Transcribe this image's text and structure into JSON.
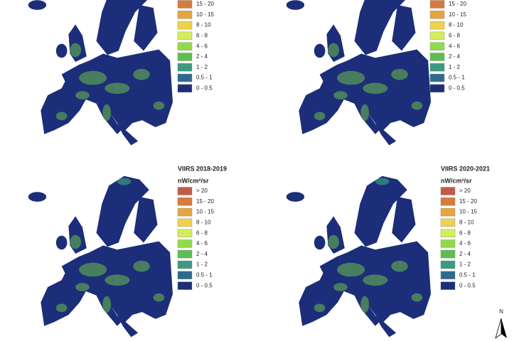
{
  "panels": [
    {
      "legend": [
        {
          "label": "15 - 20",
          "color": "#d77a3c"
        },
        {
          "label": "10 - 15",
          "color": "#e6a53e"
        },
        {
          "label": "8 - 10",
          "color": "#efd24b"
        },
        {
          "label": "6 - 8",
          "color": "#d3ee5c"
        },
        {
          "label": "4 - 6",
          "color": "#8fdc4a"
        },
        {
          "label": "2 - 4",
          "color": "#5bbf50"
        },
        {
          "label": "1 - 2",
          "color": "#3c9a80"
        },
        {
          "label": "0.5 - 1",
          "color": "#2e6a8f"
        },
        {
          "label": "0 - 0.5",
          "color": "#1c2e79"
        }
      ]
    },
    {
      "legend": [
        {
          "label": "15 - 20",
          "color": "#d77a3c"
        },
        {
          "label": "10 - 15",
          "color": "#e6a53e"
        },
        {
          "label": "8 - 10",
          "color": "#efd24b"
        },
        {
          "label": "6 - 8",
          "color": "#d3ee5c"
        },
        {
          "label": "4 - 6",
          "color": "#8fdc4a"
        },
        {
          "label": "2 - 4",
          "color": "#5bbf50"
        },
        {
          "label": "1 - 2",
          "color": "#3c9a80"
        },
        {
          "label": "0.5 - 1",
          "color": "#2e6a8f"
        },
        {
          "label": "0 - 0.5",
          "color": "#1c2e79"
        }
      ]
    },
    {
      "title": "VIIRS 2018-2019",
      "unit": "nW/cm²/sr",
      "legend": [
        {
          "label": "> 20",
          "color": "#c45a45"
        },
        {
          "label": "15 - 20",
          "color": "#d77a3c"
        },
        {
          "label": "10 - 15",
          "color": "#e6a53e"
        },
        {
          "label": "8 - 10",
          "color": "#efd24b"
        },
        {
          "label": "6 - 8",
          "color": "#d3ee5c"
        },
        {
          "label": "4 - 6",
          "color": "#8fdc4a"
        },
        {
          "label": "2 - 4",
          "color": "#5bbf50"
        },
        {
          "label": "1 - 2",
          "color": "#3c9a80"
        },
        {
          "label": "0.5 - 1",
          "color": "#2e6a8f"
        },
        {
          "label": "0 - 0.5",
          "color": "#1c2e79"
        }
      ]
    },
    {
      "title": "VIIRS 2020-2021",
      "unit": "nW/cm²/sr",
      "legend": [
        {
          "label": "> 20",
          "color": "#c45a45"
        },
        {
          "label": "15 - 20",
          "color": "#d77a3c"
        },
        {
          "label": "10 - 15",
          "color": "#e6a53e"
        },
        {
          "label": "8 - 10",
          "color": "#efd24b"
        },
        {
          "label": "6 - 8",
          "color": "#d3ee5c"
        },
        {
          "label": "4 - 6",
          "color": "#8fdc4a"
        },
        {
          "label": "2 - 4",
          "color": "#5bbf50"
        },
        {
          "label": "1 - 2",
          "color": "#3c9a80"
        },
        {
          "label": "0.5 - 1",
          "color": "#2e6a8f"
        },
        {
          "label": "0 - 0.5",
          "color": "#1c2e79"
        }
      ]
    }
  ],
  "north_arrow": "N"
}
